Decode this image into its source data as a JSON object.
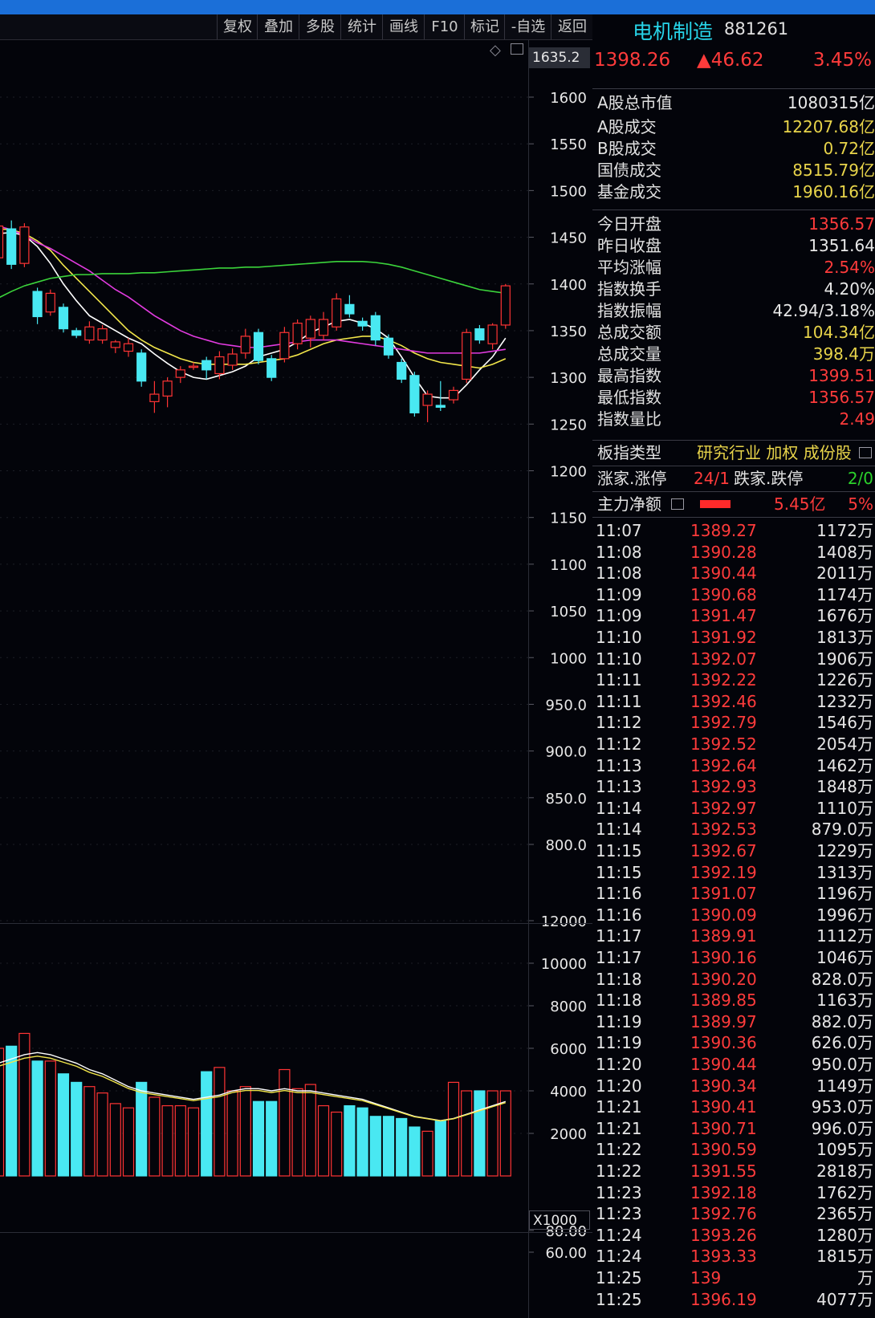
{
  "toolbar": {
    "buttons": [
      "复权",
      "叠加",
      "多股",
      "统计",
      "画线",
      "F10",
      "标记",
      "-自选",
      "返回"
    ]
  },
  "price_axis": {
    "top_label": "1635.2",
    "ticks": [
      "1600",
      "1550",
      "1500",
      "1450",
      "1400",
      "1350",
      "1300",
      "1250",
      "1200",
      "1150",
      "1100",
      "1050",
      "1000",
      "950.0",
      "900.0",
      "850.0",
      "800.0"
    ]
  },
  "volume_axis": {
    "ticks": [
      "12000",
      "10000",
      "8000",
      "6000",
      "4000",
      "2000"
    ],
    "unit": "X1000"
  },
  "indicator_axis": {
    "ticks": [
      "80.00",
      "60.00"
    ]
  },
  "header": {
    "name": "电机制造",
    "code": "881261",
    "price": "1398.26",
    "change": "▲46.62",
    "pct": "3.45%"
  },
  "market": [
    {
      "label": "A股总市值",
      "value": "1080315亿",
      "color": "#e8e8e8"
    },
    {
      "label": "A股成交",
      "value": "12207.68亿",
      "color": "#e8d44a"
    },
    {
      "label": "B股成交",
      "value": "0.72亿",
      "color": "#e8d44a"
    },
    {
      "label": "国债成交",
      "value": "8515.79亿",
      "color": "#e8d44a"
    },
    {
      "label": "基金成交",
      "value": "1960.16亿",
      "color": "#e8d44a"
    }
  ],
  "stats": [
    {
      "label": "今日开盘",
      "value": "1356.57",
      "color": "#ff3b3b"
    },
    {
      "label": "昨日收盘",
      "value": "1351.64",
      "color": "#e8e8e8"
    },
    {
      "label": "平均涨幅",
      "value": "2.54%",
      "color": "#ff3b3b"
    },
    {
      "label": "指数换手",
      "value": "4.20%",
      "color": "#e8e8e8"
    },
    {
      "label": "指数振幅",
      "value": "42.94/3.18%",
      "color": "#e8e8e8"
    },
    {
      "label": "总成交额",
      "value": "104.34亿",
      "color": "#e8d44a"
    },
    {
      "label": "总成交量",
      "value": "398.4万",
      "color": "#e8d44a"
    },
    {
      "label": "最高指数",
      "value": "1399.51",
      "color": "#ff3b3b"
    },
    {
      "label": "最低指数",
      "value": "1356.57",
      "color": "#ff3b3b"
    },
    {
      "label": "指数量比",
      "value": "2.49",
      "color": "#ff3b3b"
    }
  ],
  "board": {
    "label": "板指类型",
    "value": "研究行业 加权 成份股"
  },
  "limits": {
    "up_label": "涨家.涨停",
    "up_value": "24/1",
    "down_label": "跌家.跌停",
    "down_value": "2/0"
  },
  "main_force": {
    "label": "主力净额",
    "amount": "5.45亿",
    "pct": "5%"
  },
  "ticks": [
    [
      "11:07",
      "1389.27",
      "1172万"
    ],
    [
      "11:08",
      "1390.28",
      "1408万"
    ],
    [
      "11:08",
      "1390.44",
      "2011万"
    ],
    [
      "11:09",
      "1390.68",
      "1174万"
    ],
    [
      "11:09",
      "1391.47",
      "1676万"
    ],
    [
      "11:10",
      "1391.92",
      "1813万"
    ],
    [
      "11:10",
      "1392.07",
      "1906万"
    ],
    [
      "11:11",
      "1392.22",
      "1226万"
    ],
    [
      "11:11",
      "1392.46",
      "1232万"
    ],
    [
      "11:12",
      "1392.79",
      "1546万"
    ],
    [
      "11:12",
      "1392.52",
      "2054万"
    ],
    [
      "11:13",
      "1392.64",
      "1462万"
    ],
    [
      "11:13",
      "1392.93",
      "1848万"
    ],
    [
      "11:14",
      "1392.97",
      "1110万"
    ],
    [
      "11:14",
      "1392.53",
      "879.0万"
    ],
    [
      "11:15",
      "1392.67",
      "1229万"
    ],
    [
      "11:15",
      "1392.19",
      "1313万"
    ],
    [
      "11:16",
      "1391.07",
      "1196万"
    ],
    [
      "11:16",
      "1390.09",
      "1996万"
    ],
    [
      "11:17",
      "1389.91",
      "1112万"
    ],
    [
      "11:17",
      "1390.16",
      "1046万"
    ],
    [
      "11:18",
      "1390.20",
      "828.0万"
    ],
    [
      "11:18",
      "1389.85",
      "1163万"
    ],
    [
      "11:19",
      "1389.97",
      "882.0万"
    ],
    [
      "11:19",
      "1390.36",
      "626.0万"
    ],
    [
      "11:20",
      "1390.44",
      "950.0万"
    ],
    [
      "11:20",
      "1390.34",
      "1149万"
    ],
    [
      "11:21",
      "1390.41",
      "953.0万"
    ],
    [
      "11:21",
      "1390.71",
      "996.0万"
    ],
    [
      "11:22",
      "1390.59",
      "1095万"
    ],
    [
      "11:22",
      "1391.55",
      "2818万"
    ],
    [
      "11:23",
      "1392.18",
      "1762万"
    ],
    [
      "11:23",
      "1392.76",
      "2365万"
    ],
    [
      "11:24",
      "1393.26",
      "1280万"
    ],
    [
      "11:24",
      "1393.33",
      "1815万"
    ],
    [
      "11:25",
      "139",
      "万"
    ],
    [
      "11:25",
      "1396.19",
      "4077万"
    ]
  ],
  "chart_data": {
    "type": "candlestick",
    "candles": [
      [
        1428,
        1462,
        1418,
        1465
      ],
      [
        1459,
        1421,
        1416,
        1468
      ],
      [
        1422,
        1461,
        1418,
        1465
      ],
      [
        1392,
        1365,
        1357,
        1396
      ],
      [
        1370,
        1390,
        1366,
        1394
      ],
      [
        1375,
        1352,
        1348,
        1379
      ],
      [
        1350,
        1345,
        1342,
        1353
      ],
      [
        1340,
        1354,
        1336,
        1360
      ],
      [
        1340,
        1352,
        1336,
        1356
      ],
      [
        1332,
        1338,
        1326,
        1340
      ],
      [
        1328,
        1336,
        1322,
        1342
      ],
      [
        1326,
        1296,
        1290,
        1330
      ],
      [
        1274,
        1282,
        1262,
        1296
      ],
      [
        1280,
        1296,
        1268,
        1300
      ],
      [
        1300,
        1308,
        1294,
        1312
      ],
      [
        1312,
        1312,
        1308,
        1316
      ],
      [
        1318,
        1308,
        1298,
        1322
      ],
      [
        1304,
        1322,
        1298,
        1328
      ],
      [
        1313,
        1325,
        1308,
        1331
      ],
      [
        1326,
        1344,
        1320,
        1352
      ],
      [
        1348,
        1318,
        1314,
        1352
      ],
      [
        1320,
        1300,
        1296,
        1324
      ],
      [
        1320,
        1348,
        1316,
        1354
      ],
      [
        1336,
        1358,
        1330,
        1362
      ],
      [
        1342,
        1362,
        1332,
        1366
      ],
      [
        1345,
        1362,
        1340,
        1370
      ],
      [
        1354,
        1384,
        1350,
        1390
      ],
      [
        1378,
        1368,
        1364,
        1388
      ],
      [
        1360,
        1355,
        1350,
        1364
      ],
      [
        1366,
        1340,
        1334,
        1370
      ],
      [
        1342,
        1324,
        1320,
        1346
      ],
      [
        1316,
        1298,
        1294,
        1320
      ],
      [
        1302,
        1262,
        1258,
        1306
      ],
      [
        1270,
        1282,
        1252,
        1286
      ],
      [
        1270,
        1268,
        1264,
        1296
      ],
      [
        1276,
        1286,
        1272,
        1290
      ],
      [
        1298,
        1348,
        1294,
        1352
      ],
      [
        1352,
        1340,
        1336,
        1356
      ],
      [
        1336,
        1356,
        1330,
        1358
      ],
      [
        1356,
        1398,
        1352,
        1400
      ]
    ],
    "ma": [
      {
        "name": "MA5",
        "color": "#ffffff",
        "values": [
          1454,
          1455,
          1452,
          1440,
          1422,
          1400,
          1382,
          1366,
          1358,
          1350,
          1342,
          1336,
          1325,
          1315,
          1306,
          1300,
          1298,
          1302,
          1306,
          1312,
          1322,
          1326,
          1330,
          1338,
          1348,
          1354,
          1360,
          1362,
          1358,
          1352,
          1342,
          1322,
          1300,
          1280,
          1278,
          1278,
          1292,
          1308,
          1322,
          1342
        ]
      },
      {
        "name": "MA10",
        "color": "#f2e64a",
        "values": [
          1459,
          1458,
          1454,
          1446,
          1436,
          1420,
          1406,
          1392,
          1378,
          1364,
          1350,
          1340,
          1332,
          1326,
          1320,
          1316,
          1314,
          1314,
          1314,
          1314,
          1316,
          1318,
          1320,
          1324,
          1330,
          1336,
          1340,
          1342,
          1344,
          1344,
          1340,
          1334,
          1326,
          1320,
          1316,
          1314,
          1312,
          1310,
          1314,
          1320
        ]
      },
      {
        "name": "MA20",
        "color": "#e23be0",
        "values": [
          1462,
          1458,
          1452,
          1444,
          1438,
          1430,
          1422,
          1414,
          1404,
          1394,
          1386,
          1376,
          1366,
          1358,
          1350,
          1344,
          1340,
          1336,
          1334,
          1332,
          1332,
          1334,
          1336,
          1338,
          1340,
          1340,
          1340,
          1338,
          1336,
          1334,
          1332,
          1330,
          1328,
          1326,
          1326,
          1326,
          1326,
          1326,
          1328,
          1330
        ]
      },
      {
        "name": "MA60",
        "color": "#3bd43b",
        "values": [
          1385,
          1392,
          1398,
          1402,
          1406,
          1408,
          1410,
          1410,
          1411,
          1411,
          1411,
          1412,
          1412,
          1413,
          1414,
          1415,
          1416,
          1417,
          1417,
          1418,
          1418,
          1419,
          1420,
          1421,
          1422,
          1423,
          1424,
          1424,
          1424,
          1423,
          1421,
          1418,
          1414,
          1410,
          1406,
          1402,
          1398,
          1394,
          1392,
          1390
        ]
      }
    ],
    "volume": {
      "values": [
        6000,
        6100,
        6700,
        5400,
        5400,
        4800,
        4400,
        4200,
        3900,
        3400,
        3200,
        4400,
        3700,
        3300,
        3300,
        3200,
        4900,
        5100,
        4000,
        4200,
        3500,
        3500,
        5000,
        4100,
        4300,
        3300,
        3000,
        3300,
        3200,
        2800,
        2800,
        2700,
        2300,
        2100,
        2600,
        4400,
        4000,
        4000,
        4000,
        4000
      ],
      "ma5": [
        5300,
        5500,
        5700,
        5800,
        5700,
        5500,
        5300,
        5000,
        4800,
        4500,
        4200,
        4000,
        3900,
        3800,
        3700,
        3600,
        3700,
        3800,
        4000,
        4100,
        4100,
        4000,
        4100,
        4000,
        4000,
        3900,
        3800,
        3700,
        3600,
        3400,
        3200,
        3000,
        2800,
        2700,
        2600,
        2700,
        2900,
        3100,
        3300,
        3500
      ]
    }
  }
}
